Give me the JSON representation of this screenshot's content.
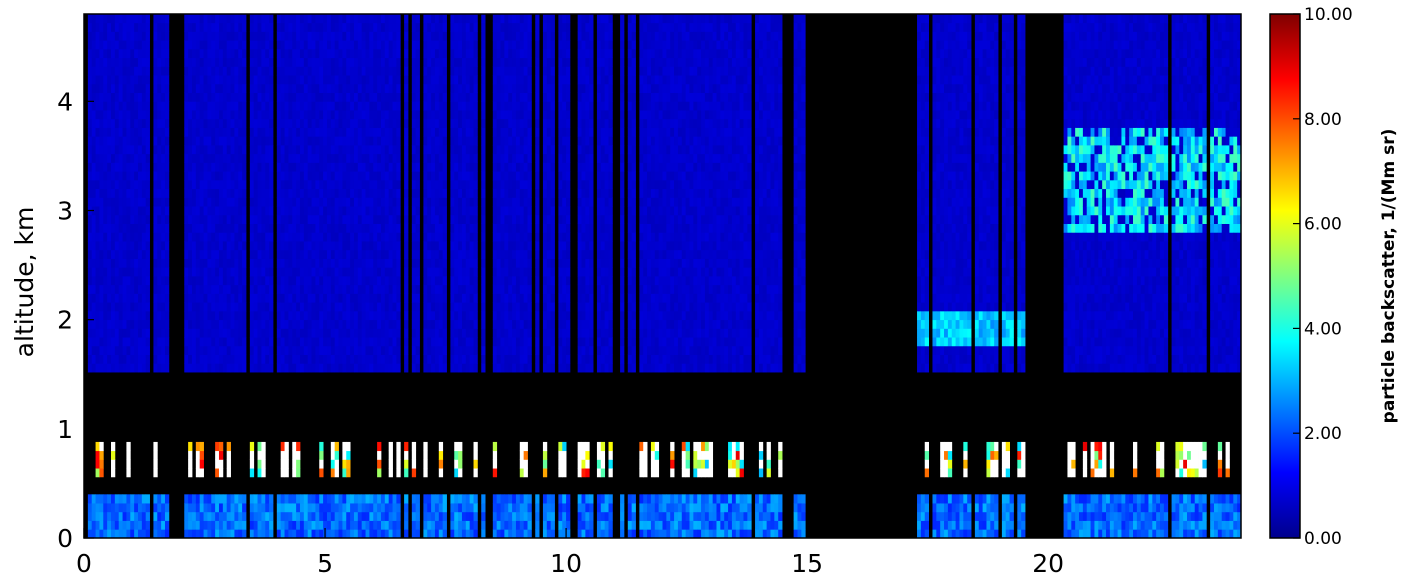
{
  "chart_data": {
    "type": "heatmap",
    "title": "",
    "xlabel": "",
    "ylabel": "altitude, km",
    "xlim": [
      0,
      24
    ],
    "ylim": [
      0,
      4.8
    ],
    "x_ticks": [
      0,
      5,
      10,
      15,
      20
    ],
    "y_ticks": [
      0,
      1,
      2,
      3,
      4
    ],
    "colorbar": {
      "label": "particle backscatter, 1/(Mm sr)",
      "range": [
        0,
        10
      ],
      "ticks": [
        "0.00",
        "2.00",
        "4.00",
        "6.00",
        "8.00",
        "10.00"
      ],
      "colormap": [
        "#00008c",
        "#0000ff",
        "#0080ff",
        "#00ffff",
        "#80ff80",
        "#ffff00",
        "#ff8000",
        "#ff0000",
        "#800000"
      ]
    },
    "missing_color": "#000000",
    "saturated_color": "#ffffff",
    "features": [
      {
        "name": "background free troposphere",
        "x": [
          0,
          24
        ],
        "altitude": [
          1.5,
          4.8
        ],
        "backscatter": 0.7
      },
      {
        "name": "surface layer",
        "x": [
          0,
          24
        ],
        "altitude": [
          0,
          0.4
        ],
        "backscatter": 2.3
      },
      {
        "name": "cloud layer",
        "x": [
          0,
          24
        ],
        "altitude": [
          0.6,
          0.9
        ],
        "backscatter": 10
      },
      {
        "name": "elevated aerosol layer",
        "x": [
          20.3,
          24
        ],
        "altitude": [
          2.8,
          3.8
        ],
        "backscatter": 3.5
      },
      {
        "name": "aerosol layer",
        "x": [
          17.1,
          19.5
        ],
        "altitude": [
          1.8,
          2.1
        ],
        "backscatter": 3.2
      }
    ],
    "missing_intervals": [
      [
        1.85,
        2.1
      ],
      [
        10.05,
        10.25
      ],
      [
        14.45,
        14.7
      ],
      [
        14.95,
        17.1
      ],
      [
        19.5,
        20.35
      ]
    ]
  }
}
